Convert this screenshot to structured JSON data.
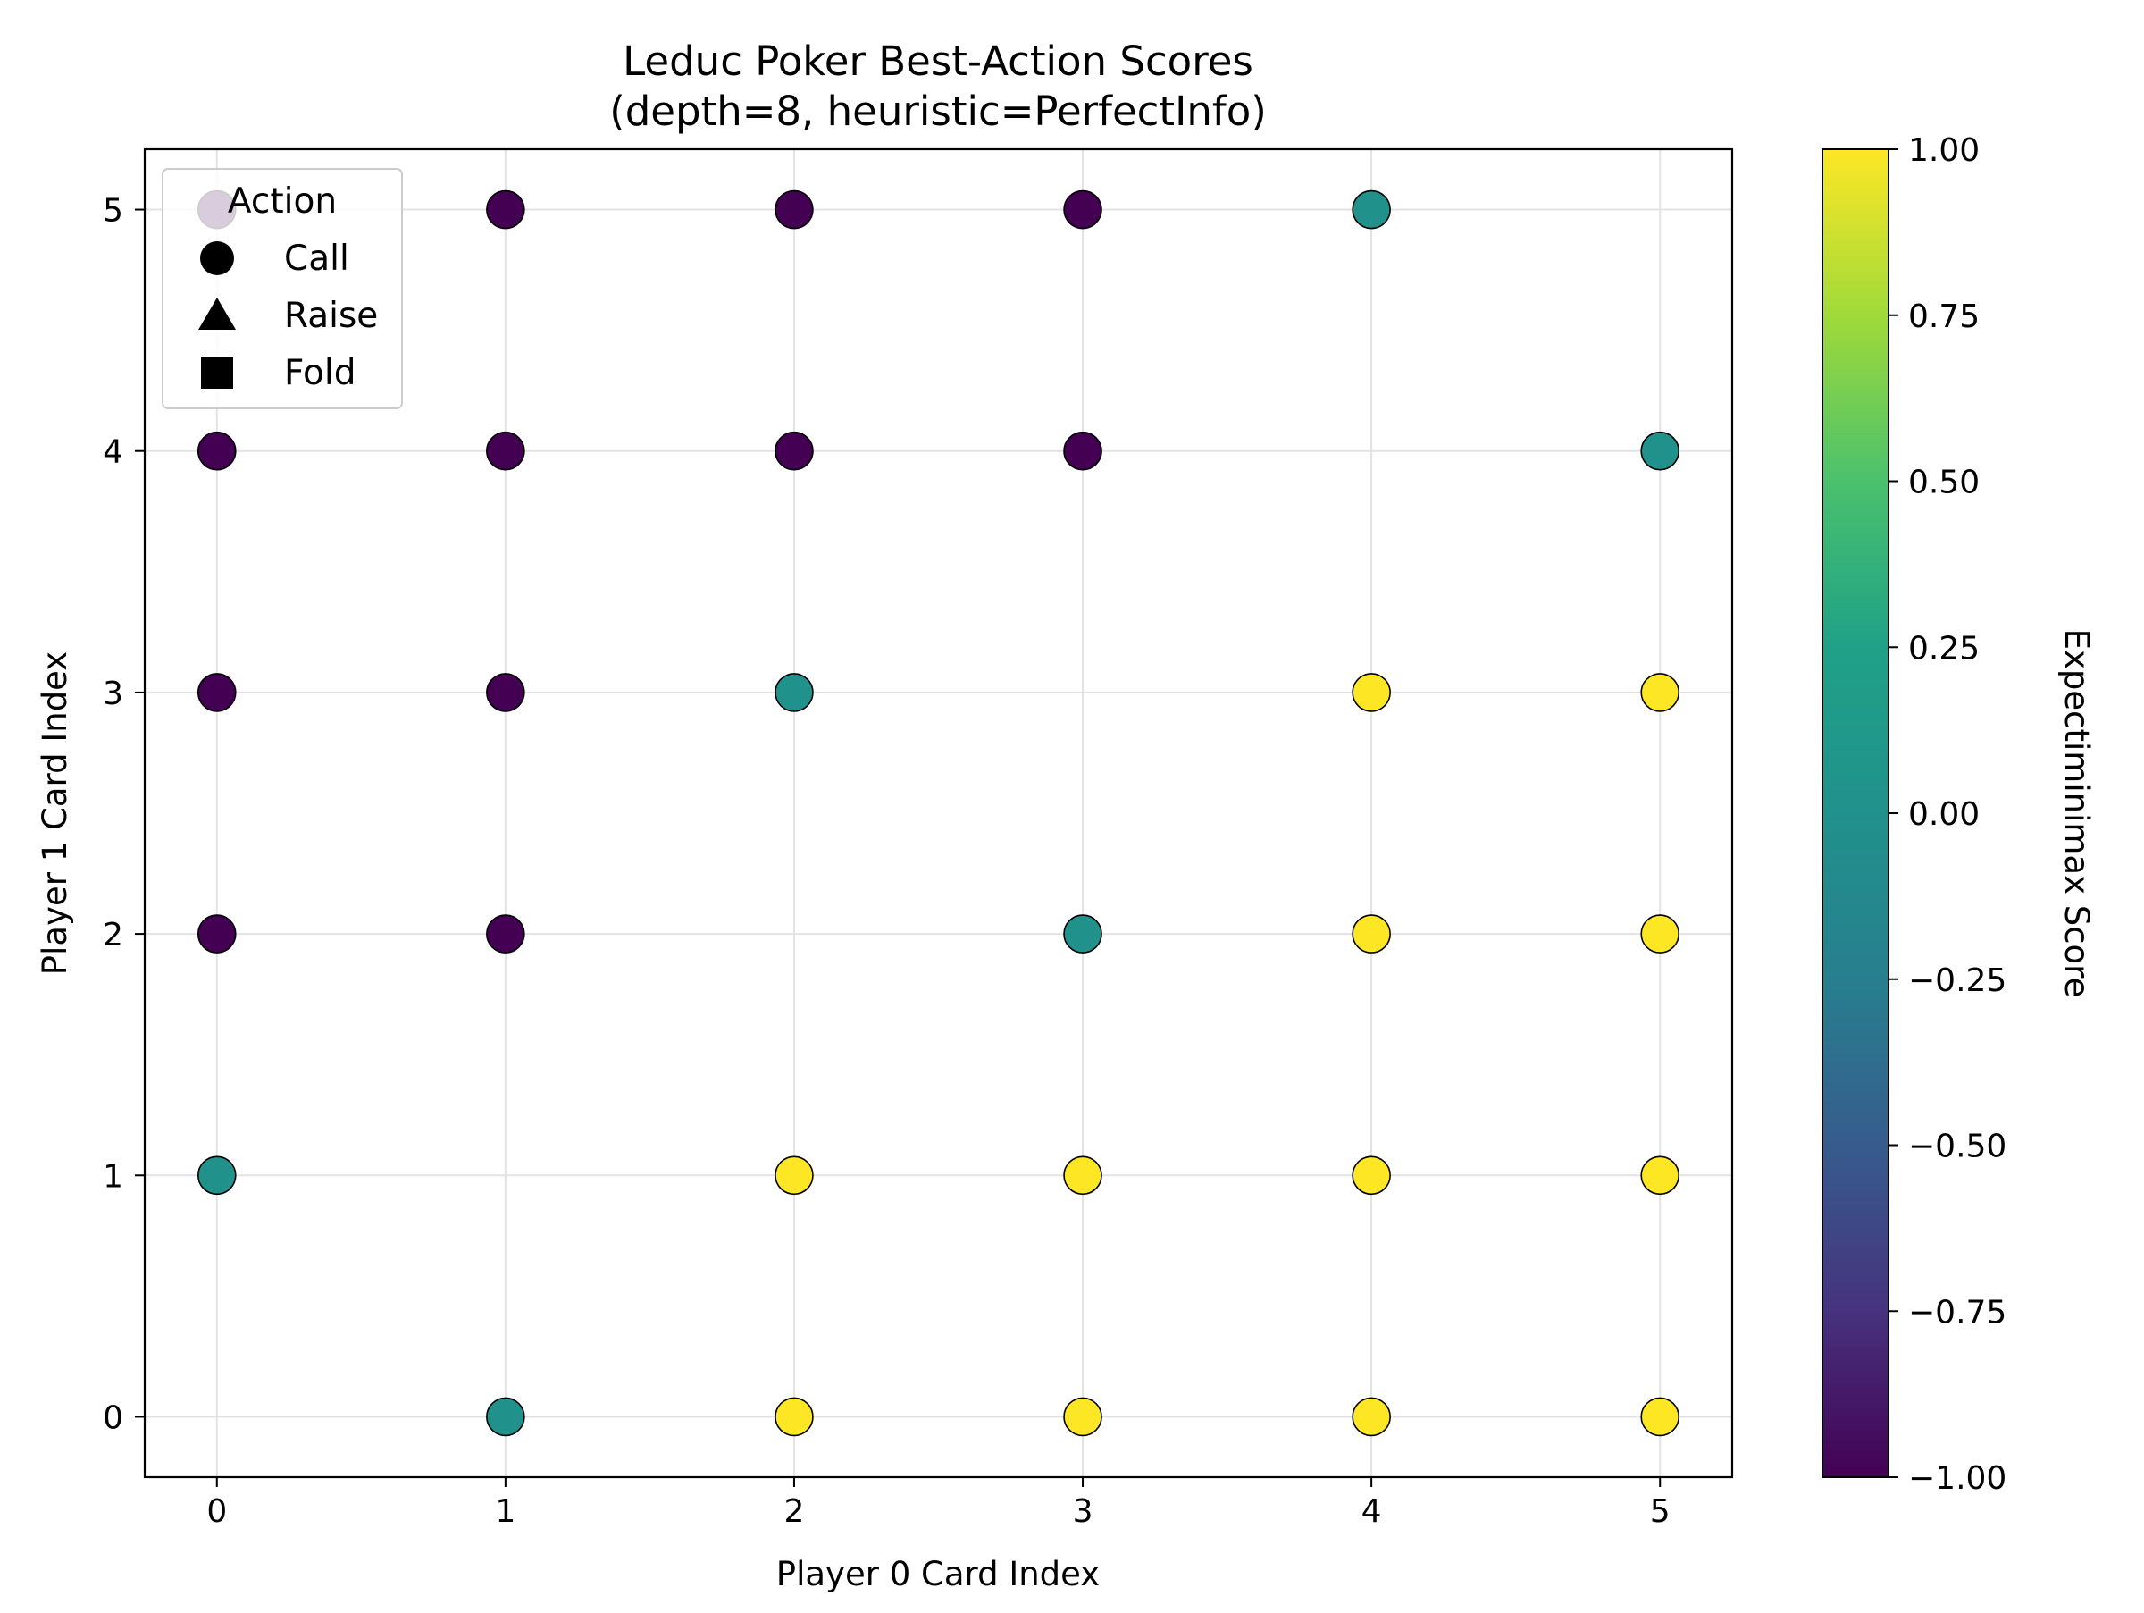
{
  "chart_data": {
    "type": "scatter",
    "title": "Leduc Poker Best-Action Scores",
    "subtitle": "(depth=8, heuristic=PerfectInfo)",
    "xlabel": "Player 0 Card Index",
    "ylabel": "Player 1 Card Index",
    "xlim": [
      -0.25,
      5.25
    ],
    "ylim": [
      -0.25,
      5.25
    ],
    "x_ticks": [
      "0",
      "1",
      "2",
      "3",
      "4",
      "5"
    ],
    "y_ticks": [
      "0",
      "1",
      "2",
      "3",
      "4",
      "5"
    ],
    "grid": true,
    "legend": {
      "title": "Action",
      "placement": "upper-left",
      "entries": [
        {
          "label": "Call",
          "marker": "circle"
        },
        {
          "label": "Raise",
          "marker": "triangle"
        },
        {
          "label": "Fold",
          "marker": "square"
        }
      ]
    },
    "colorbar": {
      "label": "Expectiminimax Score",
      "colormap": "viridis",
      "range": [
        -1.0,
        1.0
      ],
      "ticks": [
        "−1.00",
        "−0.75",
        "−0.50",
        "−0.25",
        "0.00",
        "0.25",
        "0.50",
        "0.75",
        "1.00"
      ]
    },
    "points": [
      {
        "x": 0,
        "y": 1,
        "score": 0,
        "action": "Call"
      },
      {
        "x": 0,
        "y": 2,
        "score": -1,
        "action": "Call"
      },
      {
        "x": 0,
        "y": 3,
        "score": -1,
        "action": "Call"
      },
      {
        "x": 0,
        "y": 4,
        "score": -1,
        "action": "Call"
      },
      {
        "x": 0,
        "y": 5,
        "score": -1,
        "action": "Call"
      },
      {
        "x": 1,
        "y": 0,
        "score": 0,
        "action": "Call"
      },
      {
        "x": 1,
        "y": 2,
        "score": -1,
        "action": "Call"
      },
      {
        "x": 1,
        "y": 3,
        "score": -1,
        "action": "Call"
      },
      {
        "x": 1,
        "y": 4,
        "score": -1,
        "action": "Call"
      },
      {
        "x": 1,
        "y": 5,
        "score": -1,
        "action": "Call"
      },
      {
        "x": 2,
        "y": 0,
        "score": 1,
        "action": "Call"
      },
      {
        "x": 2,
        "y": 1,
        "score": 1,
        "action": "Call"
      },
      {
        "x": 2,
        "y": 3,
        "score": 0,
        "action": "Call"
      },
      {
        "x": 2,
        "y": 4,
        "score": -1,
        "action": "Call"
      },
      {
        "x": 2,
        "y": 5,
        "score": -1,
        "action": "Call"
      },
      {
        "x": 3,
        "y": 0,
        "score": 1,
        "action": "Call"
      },
      {
        "x": 3,
        "y": 1,
        "score": 1,
        "action": "Call"
      },
      {
        "x": 3,
        "y": 2,
        "score": 0,
        "action": "Call"
      },
      {
        "x": 3,
        "y": 4,
        "score": -1,
        "action": "Call"
      },
      {
        "x": 3,
        "y": 5,
        "score": -1,
        "action": "Call"
      },
      {
        "x": 4,
        "y": 0,
        "score": 1,
        "action": "Call"
      },
      {
        "x": 4,
        "y": 1,
        "score": 1,
        "action": "Call"
      },
      {
        "x": 4,
        "y": 2,
        "score": 1,
        "action": "Call"
      },
      {
        "x": 4,
        "y": 3,
        "score": 1,
        "action": "Call"
      },
      {
        "x": 4,
        "y": 5,
        "score": 0,
        "action": "Call"
      },
      {
        "x": 5,
        "y": 0,
        "score": 1,
        "action": "Call"
      },
      {
        "x": 5,
        "y": 1,
        "score": 1,
        "action": "Call"
      },
      {
        "x": 5,
        "y": 2,
        "score": 1,
        "action": "Call"
      },
      {
        "x": 5,
        "y": 3,
        "score": 1,
        "action": "Call"
      },
      {
        "x": 5,
        "y": 4,
        "score": 0,
        "action": "Call"
      }
    ]
  }
}
